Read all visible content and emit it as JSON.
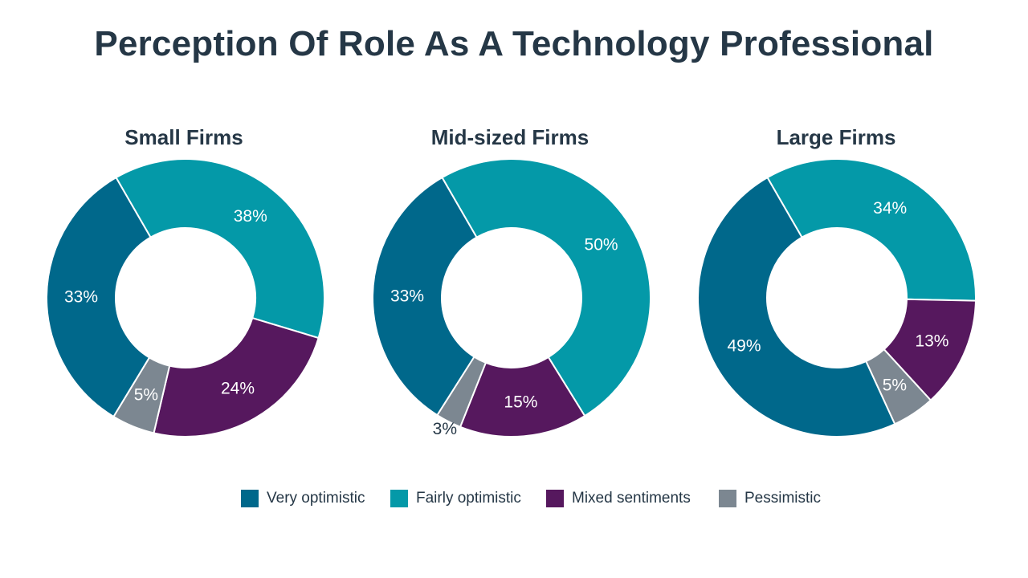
{
  "title": "Perception Of Role As A Technology Professional",
  "colors": {
    "very_optimistic": "#00688B",
    "fairly_optimistic": "#0499A8",
    "mixed_sentiments": "#56185E",
    "pessimistic": "#7C8791",
    "label_light": "#ffffff",
    "label_dark": "#253746"
  },
  "legend": [
    {
      "label": "Very optimistic",
      "color": "#00688B"
    },
    {
      "label": "Fairly optimistic",
      "color": "#0499A8"
    },
    {
      "label": "Mixed sentiments",
      "color": "#56185E"
    },
    {
      "label": "Pessimistic",
      "color": "#7C8791"
    }
  ],
  "chart_data": [
    {
      "type": "pie",
      "title": "Small Firms",
      "categories": [
        "Fairly optimistic",
        "Mixed sentiments",
        "Pessimistic",
        "Very optimistic"
      ],
      "values": [
        38,
        24,
        5,
        33
      ],
      "labels": [
        "38%",
        "24%",
        "5%",
        "33%"
      ]
    },
    {
      "type": "pie",
      "title": "Mid-sized Firms",
      "categories": [
        "Fairly optimistic",
        "Mixed sentiments",
        "Pessimistic",
        "Very optimistic"
      ],
      "values": [
        50,
        15,
        3,
        33
      ],
      "labels": [
        "50%",
        "15%",
        "3%",
        "33%"
      ]
    },
    {
      "type": "pie",
      "title": "Large Firms",
      "categories": [
        "Fairly optimistic",
        "Mixed sentiments",
        "Pessimistic",
        "Very optimistic"
      ],
      "values": [
        34,
        13,
        5,
        49
      ],
      "labels": [
        "34%",
        "13%",
        "5%",
        "49%"
      ]
    }
  ]
}
